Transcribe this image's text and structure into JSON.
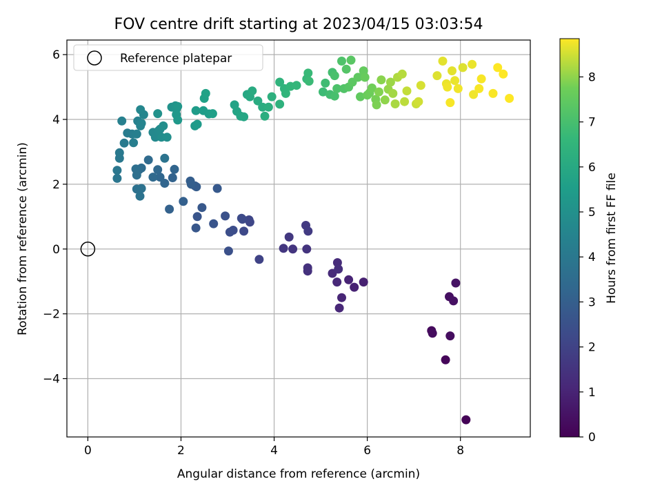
{
  "chart_data": {
    "type": "scatter",
    "title": "FOV centre drift starting at 2023/04/15 03:03:54",
    "xlabel": "Angular distance from reference (arcmin)",
    "ylabel": "Rotation from reference (arcmin)",
    "xlim": [
      -0.45,
      9.5
    ],
    "ylim": [
      -5.8,
      6.45
    ],
    "xticks": [
      0,
      2,
      4,
      6,
      8
    ],
    "yticks": [
      -4,
      -2,
      0,
      2,
      4,
      6
    ],
    "xtick_labels": [
      "0",
      "2",
      "4",
      "6",
      "8"
    ],
    "ytick_labels": [
      "−4",
      "−2",
      "0",
      "2",
      "4",
      "6"
    ],
    "grid": true,
    "legend": {
      "position": "top-left",
      "entries": [
        "Reference platepar"
      ]
    },
    "reference_point": {
      "x": 0,
      "y": 0
    },
    "colorbar": {
      "label": "Hours from first FF file",
      "min": 0,
      "max": 8.85,
      "ticks": [
        0,
        1,
        2,
        3,
        4,
        5,
        6,
        7,
        8
      ],
      "tick_labels": [
        "0",
        "1",
        "2",
        "3",
        "4",
        "5",
        "6",
        "7",
        "8"
      ],
      "colormap": "viridis"
    },
    "points": [
      [
        8.12,
        -5.27,
        0.05
      ],
      [
        7.68,
        -3.42,
        0.15
      ],
      [
        7.38,
        -2.52,
        0.25
      ],
      [
        7.4,
        -2.6,
        0.3
      ],
      [
        7.78,
        -2.68,
        0.35
      ],
      [
        7.76,
        -1.47,
        0.4
      ],
      [
        7.85,
        -1.6,
        0.45
      ],
      [
        7.9,
        -1.05,
        0.5
      ],
      [
        5.92,
        -1.02,
        0.9
      ],
      [
        5.72,
        -1.18,
        0.95
      ],
      [
        5.6,
        -0.95,
        1.0
      ],
      [
        5.45,
        -1.5,
        1.05
      ],
      [
        5.4,
        -1.82,
        1.1
      ],
      [
        5.35,
        -1.02,
        1.15
      ],
      [
        5.25,
        -0.75,
        1.2
      ],
      [
        5.36,
        -0.42,
        1.25
      ],
      [
        5.38,
        -0.62,
        1.3
      ],
      [
        4.72,
        -0.68,
        1.4
      ],
      [
        4.72,
        -0.58,
        1.45
      ],
      [
        4.7,
        0.0,
        1.5
      ],
      [
        4.4,
        0.0,
        1.55
      ],
      [
        4.2,
        0.02,
        1.6
      ],
      [
        4.32,
        0.37,
        1.65
      ],
      [
        4.68,
        0.73,
        1.7
      ],
      [
        4.73,
        0.55,
        1.75
      ],
      [
        3.68,
        -0.32,
        2.0
      ],
      [
        3.46,
        0.9,
        2.1
      ],
      [
        3.48,
        0.83,
        2.15
      ],
      [
        3.35,
        0.55,
        2.2
      ],
      [
        3.32,
        0.92,
        2.25
      ],
      [
        3.3,
        0.95,
        2.3
      ],
      [
        3.12,
        0.58,
        2.35
      ],
      [
        3.05,
        0.52,
        2.4
      ],
      [
        3.02,
        -0.06,
        2.45
      ],
      [
        2.95,
        1.02,
        2.5
      ],
      [
        2.7,
        0.78,
        2.6
      ],
      [
        2.35,
        1.0,
        2.65
      ],
      [
        2.32,
        0.65,
        2.7
      ],
      [
        2.45,
        1.28,
        2.75
      ],
      [
        2.78,
        1.87,
        2.8
      ],
      [
        2.3,
        1.95,
        2.85
      ],
      [
        2.33,
        1.92,
        2.9
      ],
      [
        2.2,
        2.1,
        2.95
      ],
      [
        2.22,
        2.0,
        3.0
      ],
      [
        2.05,
        1.47,
        3.05
      ],
      [
        1.75,
        1.23,
        3.1
      ],
      [
        1.82,
        2.2,
        3.15
      ],
      [
        1.86,
        2.46,
        3.2
      ],
      [
        1.65,
        2.03,
        3.25
      ],
      [
        1.55,
        2.22,
        3.3
      ],
      [
        1.5,
        2.45,
        3.35
      ],
      [
        1.4,
        2.22,
        3.4
      ],
      [
        1.3,
        2.75,
        3.45
      ],
      [
        1.15,
        2.5,
        3.5
      ],
      [
        1.1,
        2.45,
        3.55
      ],
      [
        1.03,
        2.47,
        3.6
      ],
      [
        1.05,
        2.28,
        3.65
      ],
      [
        1.05,
        1.85,
        3.7
      ],
      [
        1.15,
        1.87,
        3.75
      ],
      [
        1.12,
        1.63,
        3.8
      ],
      [
        1.65,
        2.8,
        3.85
      ],
      [
        0.63,
        2.18,
        3.9
      ],
      [
        0.63,
        2.43,
        3.95
      ],
      [
        0.68,
        2.8,
        4.0
      ],
      [
        0.68,
        2.97,
        4.05
      ],
      [
        0.78,
        3.27,
        4.1
      ],
      [
        0.85,
        3.58,
        4.15
      ],
      [
        0.95,
        3.55,
        4.2
      ],
      [
        0.98,
        3.28,
        4.25
      ],
      [
        1.05,
        3.55,
        4.3
      ],
      [
        0.73,
        3.95,
        4.35
      ],
      [
        1.07,
        3.95,
        4.4
      ],
      [
        1.13,
        3.8,
        4.45
      ],
      [
        1.15,
        3.88,
        4.5
      ],
      [
        1.2,
        4.15,
        4.55
      ],
      [
        1.13,
        4.3,
        4.6
      ],
      [
        1.4,
        3.6,
        4.65
      ],
      [
        1.45,
        3.45,
        4.7
      ],
      [
        1.52,
        3.65,
        4.75
      ],
      [
        1.55,
        3.7,
        4.8
      ],
      [
        1.58,
        3.45,
        4.85
      ],
      [
        1.62,
        3.8,
        4.9
      ],
      [
        1.7,
        3.45,
        4.95
      ],
      [
        1.5,
        4.18,
        5.0
      ],
      [
        1.8,
        4.38,
        5.05
      ],
      [
        1.88,
        4.42,
        5.1
      ],
      [
        1.9,
        4.32,
        5.15
      ],
      [
        1.93,
        4.4,
        5.2
      ],
      [
        1.9,
        4.15,
        5.25
      ],
      [
        1.93,
        3.98,
        5.3
      ],
      [
        2.3,
        3.8,
        5.35
      ],
      [
        2.35,
        3.85,
        5.4
      ],
      [
        2.32,
        4.27,
        5.45
      ],
      [
        2.48,
        4.27,
        5.5
      ],
      [
        2.6,
        4.17,
        5.55
      ],
      [
        2.68,
        4.18,
        5.6
      ],
      [
        2.5,
        4.65,
        5.65
      ],
      [
        2.53,
        4.8,
        5.7
      ],
      [
        3.15,
        4.45,
        5.75
      ],
      [
        3.2,
        4.25,
        5.8
      ],
      [
        3.28,
        4.1,
        5.85
      ],
      [
        3.35,
        4.08,
        5.9
      ],
      [
        3.42,
        4.77,
        5.95
      ],
      [
        3.48,
        4.7,
        6.0
      ],
      [
        3.53,
        4.88,
        6.05
      ],
      [
        3.65,
        4.57,
        6.1
      ],
      [
        3.75,
        4.38,
        6.15
      ],
      [
        3.8,
        4.1,
        6.2
      ],
      [
        3.88,
        4.38,
        6.25
      ],
      [
        3.95,
        4.7,
        6.3
      ],
      [
        4.12,
        4.47,
        6.35
      ],
      [
        4.12,
        5.15,
        6.4
      ],
      [
        4.22,
        4.95,
        6.45
      ],
      [
        4.25,
        4.8,
        6.5
      ],
      [
        4.35,
        5.02,
        6.55
      ],
      [
        4.48,
        5.05,
        6.6
      ],
      [
        4.7,
        5.25,
        6.65
      ],
      [
        4.73,
        5.43,
        6.7
      ],
      [
        4.75,
        5.18,
        6.75
      ],
      [
        5.05,
        4.85,
        6.8
      ],
      [
        5.1,
        5.12,
        6.85
      ],
      [
        5.2,
        4.77,
        6.9
      ],
      [
        5.25,
        5.45,
        6.95
      ],
      [
        5.3,
        4.72,
        7.0
      ],
      [
        5.3,
        5.35,
        7.05
      ],
      [
        5.35,
        4.95,
        7.1
      ],
      [
        5.45,
        5.8,
        7.15
      ],
      [
        5.5,
        4.95,
        7.2
      ],
      [
        5.55,
        5.55,
        7.25
      ],
      [
        5.6,
        5.0,
        7.3
      ],
      [
        5.65,
        5.83,
        7.35
      ],
      [
        5.68,
        5.15,
        7.4
      ],
      [
        5.8,
        5.3,
        7.45
      ],
      [
        5.85,
        4.7,
        7.5
      ],
      [
        5.92,
        5.5,
        7.55
      ],
      [
        5.95,
        5.3,
        7.6
      ],
      [
        6.0,
        4.75,
        7.65
      ],
      [
        6.05,
        4.82,
        7.7
      ],
      [
        6.1,
        4.97,
        7.75
      ],
      [
        6.18,
        4.62,
        7.8
      ],
      [
        6.2,
        4.45,
        7.85
      ],
      [
        6.25,
        4.85,
        7.9
      ],
      [
        6.3,
        5.22,
        7.95
      ],
      [
        6.38,
        4.6,
        8.0
      ],
      [
        6.45,
        4.93,
        8.05
      ],
      [
        6.5,
        5.15,
        8.1
      ],
      [
        6.55,
        4.8,
        8.15
      ],
      [
        6.6,
        4.48,
        8.2
      ],
      [
        6.65,
        5.3,
        8.25
      ],
      [
        6.75,
        5.4,
        8.3
      ],
      [
        6.8,
        4.55,
        8.35
      ],
      [
        6.85,
        4.88,
        8.4
      ],
      [
        7.05,
        4.48,
        8.45
      ],
      [
        7.1,
        4.55,
        8.5
      ],
      [
        7.15,
        5.05,
        8.55
      ],
      [
        7.5,
        5.35,
        8.6
      ],
      [
        7.62,
        5.8,
        8.65
      ],
      [
        7.7,
        5.1,
        8.7
      ],
      [
        7.72,
        5.0,
        8.75
      ],
      [
        7.78,
        4.52,
        8.8
      ],
      [
        7.82,
        5.5,
        8.65
      ],
      [
        7.88,
        5.2,
        8.7
      ],
      [
        7.95,
        4.95,
        8.75
      ],
      [
        8.05,
        5.6,
        8.6
      ],
      [
        8.25,
        5.7,
        8.7
      ],
      [
        8.28,
        4.77,
        8.75
      ],
      [
        8.4,
        4.95,
        8.8
      ],
      [
        8.45,
        5.25,
        8.8
      ],
      [
        8.7,
        4.8,
        8.82
      ],
      [
        8.8,
        5.6,
        8.85
      ],
      [
        8.92,
        5.4,
        8.85
      ],
      [
        9.05,
        4.65,
        8.85
      ]
    ]
  }
}
